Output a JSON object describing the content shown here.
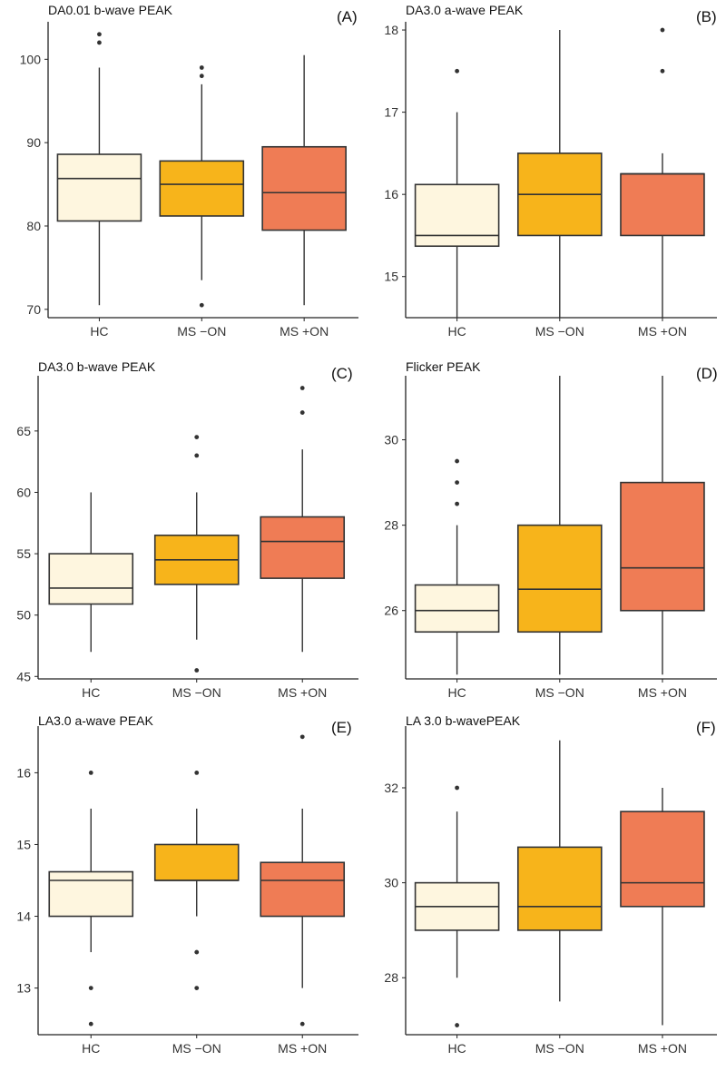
{
  "figure": {
    "colors": {
      "HC": "#fef6df",
      "MS -ON": "#f7b41b",
      "MS +ON": "#ef7c55"
    }
  },
  "chart_data": [
    {
      "type": "box",
      "title": "DA0.01 b-wave PEAK",
      "panel_label": "(A)",
      "categories": [
        "HC",
        "MS −ON",
        "MS +ON"
      ],
      "ylim": [
        69,
        104.5
      ],
      "yticks": [
        70,
        80,
        90,
        100
      ],
      "boxes": [
        {
          "category": "HC",
          "whisker_low": 70.5,
          "q1": 80.6,
          "median": 85.7,
          "q3": 88.6,
          "whisker_high": 99,
          "outliers": [
            102,
            103
          ]
        },
        {
          "category": "MS -ON",
          "whisker_low": 73.5,
          "q1": 81.2,
          "median": 85,
          "q3": 87.8,
          "whisker_high": 97,
          "outliers": [
            70.5,
            98,
            99
          ]
        },
        {
          "category": "MS +ON",
          "whisker_low": 70.5,
          "q1": 79.5,
          "median": 84,
          "q3": 89.5,
          "whisker_high": 100.5,
          "outliers": []
        }
      ]
    },
    {
      "type": "box",
      "title": "DA3.0 a-wave PEAK",
      "panel_label": "(B)",
      "categories": [
        "HC",
        "MS −ON",
        "MS +ON"
      ],
      "ylim": [
        14.5,
        18.1
      ],
      "yticks": [
        15,
        16,
        17,
        18
      ],
      "boxes": [
        {
          "category": "HC",
          "whisker_low": 14.5,
          "q1": 15.37,
          "median": 15.5,
          "q3": 16.12,
          "whisker_high": 17,
          "outliers": [
            17.5
          ]
        },
        {
          "category": "MS -ON",
          "whisker_low": 14.5,
          "q1": 15.5,
          "median": 16,
          "q3": 16.5,
          "whisker_high": 18,
          "outliers": []
        },
        {
          "category": "MS +ON",
          "whisker_low": 14.5,
          "q1": 15.5,
          "median": 16.25,
          "q3": 16.25,
          "whisker_high": 16.5,
          "outliers": [
            17.5,
            18
          ]
        }
      ]
    },
    {
      "type": "box",
      "title": "DA3.0 b-wave PEAK",
      "panel_label": "(C)",
      "categories": [
        "HC",
        "MS −ON",
        "MS +ON"
      ],
      "ylim": [
        44.8,
        69.5
      ],
      "yticks": [
        45,
        50,
        55,
        60,
        65
      ],
      "boxes": [
        {
          "category": "HC",
          "whisker_low": 47,
          "q1": 50.9,
          "median": 52.2,
          "q3": 55,
          "whisker_high": 60,
          "outliers": []
        },
        {
          "category": "MS -ON",
          "whisker_low": 48,
          "q1": 52.5,
          "median": 54.5,
          "q3": 56.5,
          "whisker_high": 60,
          "outliers": [
            45.5,
            63,
            64.5
          ]
        },
        {
          "category": "MS +ON",
          "whisker_low": 47,
          "q1": 53,
          "median": 56,
          "q3": 58,
          "whisker_high": 63.5,
          "outliers": [
            66.5,
            68.5
          ]
        }
      ]
    },
    {
      "type": "box",
      "title": "Flicker PEAK",
      "panel_label": "(D)",
      "categories": [
        "HC",
        "MS −ON",
        "MS +ON"
      ],
      "ylim": [
        24.4,
        31.5
      ],
      "yticks": [
        26,
        28,
        30
      ],
      "boxes": [
        {
          "category": "HC",
          "whisker_low": 24.5,
          "q1": 25.5,
          "median": 26,
          "q3": 26.6,
          "whisker_high": 28,
          "outliers": [
            28.5,
            29,
            29.5
          ]
        },
        {
          "category": "MS -ON",
          "whisker_low": 24.5,
          "q1": 25.5,
          "median": 26.5,
          "q3": 28,
          "whisker_high": 31.5,
          "outliers": []
        },
        {
          "category": "MS +ON",
          "whisker_low": 24.5,
          "q1": 26,
          "median": 27,
          "q3": 29,
          "whisker_high": 31.5,
          "outliers": []
        }
      ]
    },
    {
      "type": "box",
      "title": "LA3.0 a-wave PEAK",
      "panel_label": "(E)",
      "categories": [
        "HC",
        "MS −ON",
        "MS +ON"
      ],
      "ylim": [
        12.35,
        16.65
      ],
      "yticks": [
        13,
        14,
        15,
        16
      ],
      "boxes": [
        {
          "category": "HC",
          "whisker_low": 13.5,
          "q1": 14,
          "median": 14.5,
          "q3": 14.62,
          "whisker_high": 15.5,
          "outliers": [
            12.5,
            13,
            16
          ]
        },
        {
          "category": "MS -ON",
          "whisker_low": 14,
          "q1": 14.5,
          "median": 14.5,
          "q3": 15,
          "whisker_high": 15.5,
          "outliers": [
            13,
            13.5,
            16
          ]
        },
        {
          "category": "MS +ON",
          "whisker_low": 13,
          "q1": 14,
          "median": 14.5,
          "q3": 14.75,
          "whisker_high": 15.5,
          "outliers": [
            12.5,
            16.5
          ]
        }
      ]
    },
    {
      "type": "box",
      "title": "LA 3.0 b-wavePEAK",
      "panel_label": "(F)",
      "categories": [
        "HC",
        "MS −ON",
        "MS +ON"
      ],
      "ylim": [
        26.8,
        33.3
      ],
      "yticks": [
        28,
        30,
        32
      ],
      "boxes": [
        {
          "category": "HC",
          "whisker_low": 28,
          "q1": 29,
          "median": 29.5,
          "q3": 30,
          "whisker_high": 31.5,
          "outliers": [
            27,
            32
          ]
        },
        {
          "category": "MS -ON",
          "whisker_low": 27.5,
          "q1": 29,
          "median": 29.5,
          "q3": 30.75,
          "whisker_high": 33,
          "outliers": []
        },
        {
          "category": "MS +ON",
          "whisker_low": 27,
          "q1": 29.5,
          "median": 30,
          "q3": 31.5,
          "whisker_high": 32,
          "outliers": []
        }
      ]
    }
  ]
}
